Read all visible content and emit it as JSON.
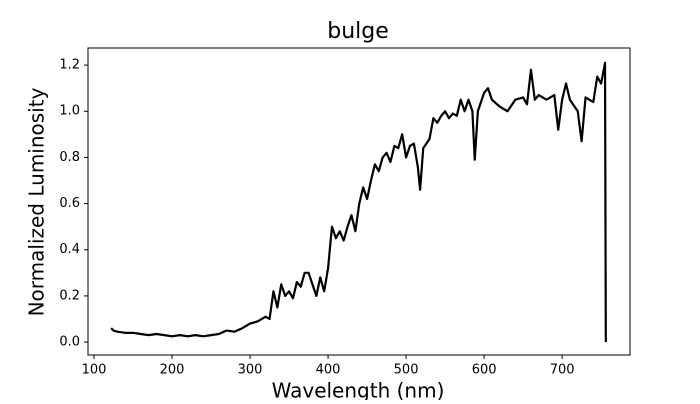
{
  "chart_data": {
    "type": "line",
    "title": "bulge",
    "xlabel": "Wavelength (nm)",
    "ylabel": "Normalized Luminosity",
    "x": [
      122,
      125,
      130,
      140,
      150,
      160,
      170,
      180,
      190,
      200,
      210,
      220,
      230,
      240,
      250,
      260,
      270,
      280,
      290,
      300,
      310,
      320,
      325,
      330,
      335,
      340,
      345,
      350,
      355,
      360,
      365,
      370,
      375,
      380,
      385,
      390,
      395,
      400,
      405,
      410,
      415,
      420,
      425,
      430,
      435,
      440,
      445,
      450,
      455,
      460,
      465,
      470,
      475,
      480,
      485,
      490,
      495,
      500,
      505,
      510,
      515,
      518,
      522,
      530,
      535,
      540,
      545,
      550,
      555,
      560,
      565,
      570,
      575,
      580,
      585,
      588,
      592,
      600,
      605,
      610,
      620,
      630,
      640,
      650,
      655,
      660,
      665,
      670,
      680,
      690,
      695,
      700,
      705,
      710,
      720,
      725,
      730,
      740,
      745,
      750,
      755,
      756
    ],
    "series": [
      {
        "name": "bulge",
        "color": "#000000",
        "values": [
          0.06,
          0.05,
          0.045,
          0.04,
          0.04,
          0.035,
          0.03,
          0.035,
          0.03,
          0.025,
          0.03,
          0.025,
          0.03,
          0.025,
          0.03,
          0.035,
          0.05,
          0.045,
          0.06,
          0.08,
          0.09,
          0.11,
          0.1,
          0.22,
          0.15,
          0.25,
          0.2,
          0.22,
          0.19,
          0.26,
          0.24,
          0.3,
          0.3,
          0.25,
          0.2,
          0.28,
          0.22,
          0.32,
          0.5,
          0.45,
          0.48,
          0.44,
          0.5,
          0.55,
          0.48,
          0.6,
          0.67,
          0.62,
          0.7,
          0.77,
          0.74,
          0.8,
          0.82,
          0.78,
          0.85,
          0.84,
          0.9,
          0.8,
          0.85,
          0.86,
          0.76,
          0.66,
          0.84,
          0.88,
          0.97,
          0.95,
          0.98,
          1.0,
          0.97,
          0.99,
          0.98,
          1.05,
          1.0,
          1.05,
          1.0,
          0.79,
          1.0,
          1.08,
          1.1,
          1.05,
          1.02,
          1.0,
          1.05,
          1.06,
          1.03,
          1.18,
          1.05,
          1.07,
          1.05,
          1.07,
          0.92,
          1.05,
          1.12,
          1.05,
          1.0,
          0.87,
          1.06,
          1.04,
          1.15,
          1.12,
          1.21,
          0.0
        ]
      }
    ],
    "xlim": [
      92.3,
      787
    ],
    "ylim": [
      -0.056,
      1.274
    ],
    "xticks": [
      100,
      200,
      300,
      400,
      500,
      600,
      700
    ],
    "yticks": [
      {
        "value": 0,
        "label": "0.0"
      },
      0.2,
      0.4,
      0.6,
      0.8,
      {
        "value": 1,
        "label": "1.0"
      },
      1.2
    ]
  }
}
